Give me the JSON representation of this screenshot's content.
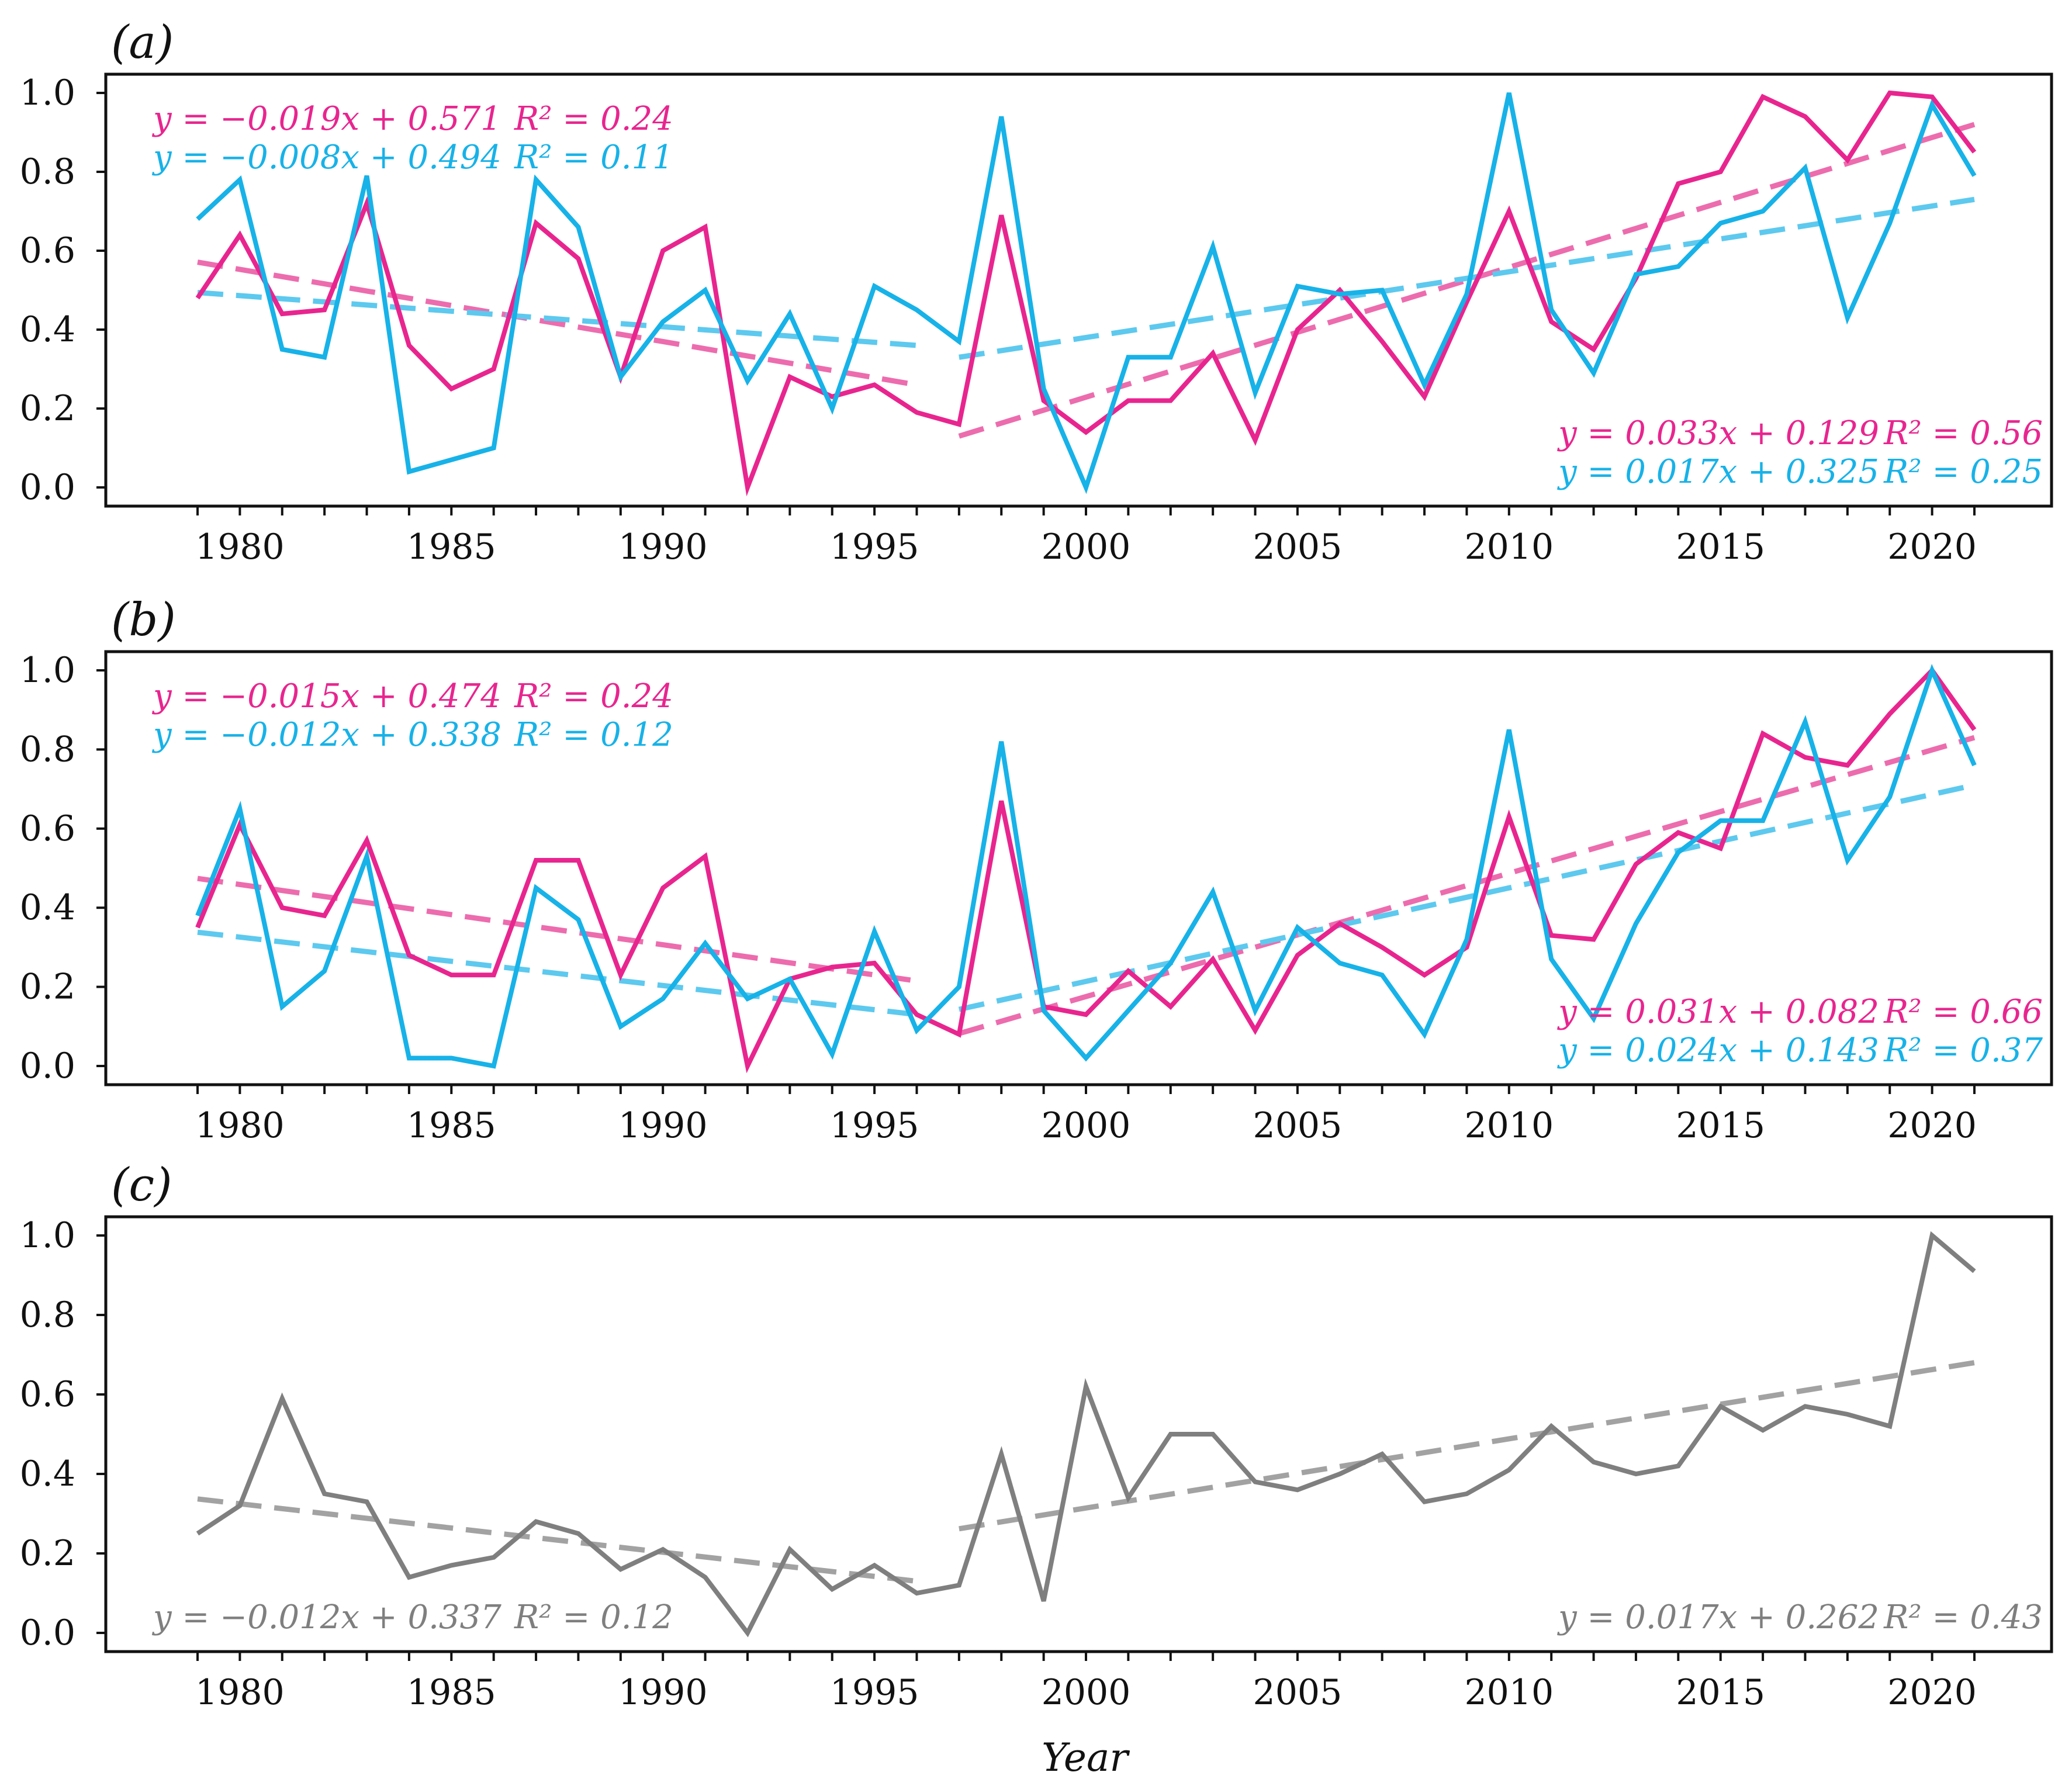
{
  "colors": {
    "magenta": "#e8258f",
    "cyan": "#17b2e8",
    "gray": "#7f7f7f",
    "magenta_trend": "#ec6cae",
    "cyan_trend": "#5dc9ee",
    "gray_trend": "#a2a2a2"
  },
  "xlabel": "Year",
  "chart_data": [
    {
      "type": "line",
      "panel_label": "(a)",
      "xlim": [
        1979,
        2021
      ],
      "ylim": [
        0.0,
        1.0
      ],
      "xticks": [
        "1980",
        "1985",
        "1990",
        "1995",
        "2000",
        "2005",
        "2010",
        "2015",
        "2020"
      ],
      "yticks": [
        "0.0",
        "0.2",
        "0.4",
        "0.6",
        "0.8",
        "1.0"
      ],
      "x": [
        1979,
        1980,
        1981,
        1982,
        1983,
        1984,
        1985,
        1986,
        1987,
        1988,
        1989,
        1990,
        1991,
        1992,
        1993,
        1994,
        1995,
        1996,
        1997,
        1998,
        1999,
        2000,
        2001,
        2002,
        2003,
        2004,
        2005,
        2006,
        2007,
        2008,
        2009,
        2010,
        2011,
        2012,
        2013,
        2014,
        2015,
        2016,
        2017,
        2018,
        2019,
        2020,
        2021
      ],
      "series": [
        {
          "name": "magenta",
          "color_key": "magenta",
          "values": [
            0.48,
            0.64,
            0.44,
            0.45,
            0.72,
            0.36,
            0.25,
            0.3,
            0.67,
            0.58,
            0.28,
            0.6,
            0.66,
            0.0,
            0.28,
            0.23,
            0.26,
            0.19,
            0.16,
            0.69,
            0.22,
            0.14,
            0.22,
            0.22,
            0.34,
            0.12,
            0.4,
            0.5,
            0.37,
            0.23,
            0.47,
            0.7,
            0.42,
            0.35,
            0.53,
            0.77,
            0.8,
            0.99,
            0.94,
            0.83,
            1.0,
            0.99,
            0.85
          ]
        },
        {
          "name": "cyan",
          "color_key": "cyan",
          "values": [
            0.68,
            0.78,
            0.35,
            0.33,
            0.79,
            0.04,
            0.07,
            0.1,
            0.78,
            0.66,
            0.28,
            0.42,
            0.5,
            0.27,
            0.44,
            0.2,
            0.51,
            0.45,
            0.37,
            0.94,
            0.25,
            0.0,
            0.33,
            0.33,
            0.61,
            0.24,
            0.51,
            0.49,
            0.5,
            0.26,
            0.49,
            1.0,
            0.45,
            0.29,
            0.54,
            0.56,
            0.67,
            0.7,
            0.81,
            0.43,
            0.67,
            0.97,
            0.79
          ]
        }
      ],
      "trends": [
        {
          "color_key": "magenta_trend",
          "x": [
            1979,
            1996
          ],
          "y": [
            0.571,
            0.26
          ]
        },
        {
          "color_key": "cyan_trend",
          "x": [
            1979,
            1996
          ],
          "y": [
            0.494,
            0.36
          ]
        },
        {
          "color_key": "magenta_trend",
          "x": [
            1997,
            2021
          ],
          "y": [
            0.13,
            0.92
          ]
        },
        {
          "color_key": "cyan_trend",
          "x": [
            1997,
            2021
          ],
          "y": [
            0.33,
            0.73
          ]
        }
      ],
      "annotations": {
        "left": [
          {
            "color_key": "magenta",
            "eq": "y = −0.019x + 0.571",
            "r2": "R² = 0.24"
          },
          {
            "color_key": "cyan",
            "eq": "y = −0.008x + 0.494",
            "r2": "R² = 0.11"
          }
        ],
        "right": [
          {
            "color_key": "magenta",
            "eq": "y = 0.033x + 0.129",
            "r2": "R² = 0.56"
          },
          {
            "color_key": "cyan",
            "eq": "y = 0.017x + 0.325",
            "r2": "R² = 0.25"
          }
        ]
      }
    },
    {
      "type": "line",
      "panel_label": "(b)",
      "xlim": [
        1979,
        2021
      ],
      "ylim": [
        0.0,
        1.0
      ],
      "xticks": [
        "1980",
        "1985",
        "1990",
        "1995",
        "2000",
        "2005",
        "2010",
        "2015",
        "2020"
      ],
      "yticks": [
        "0.0",
        "0.2",
        "0.4",
        "0.6",
        "0.8",
        "1.0"
      ],
      "x": [
        1979,
        1980,
        1981,
        1982,
        1983,
        1984,
        1985,
        1986,
        1987,
        1988,
        1989,
        1990,
        1991,
        1992,
        1993,
        1994,
        1995,
        1996,
        1997,
        1998,
        1999,
        2000,
        2001,
        2002,
        2003,
        2004,
        2005,
        2006,
        2007,
        2008,
        2009,
        2010,
        2011,
        2012,
        2013,
        2014,
        2015,
        2016,
        2017,
        2018,
        2019,
        2020,
        2021
      ],
      "series": [
        {
          "name": "magenta",
          "color_key": "magenta",
          "values": [
            0.35,
            0.61,
            0.4,
            0.38,
            0.57,
            0.28,
            0.23,
            0.23,
            0.52,
            0.52,
            0.23,
            0.45,
            0.53,
            0.0,
            0.22,
            0.25,
            0.26,
            0.13,
            0.08,
            0.67,
            0.15,
            0.13,
            0.24,
            0.15,
            0.27,
            0.09,
            0.28,
            0.36,
            0.3,
            0.23,
            0.3,
            0.63,
            0.33,
            0.32,
            0.51,
            0.59,
            0.55,
            0.84,
            0.78,
            0.76,
            0.89,
            1.0,
            0.85
          ]
        },
        {
          "name": "cyan",
          "color_key": "cyan",
          "values": [
            0.38,
            0.65,
            0.15,
            0.24,
            0.53,
            0.02,
            0.02,
            0.0,
            0.45,
            0.37,
            0.1,
            0.17,
            0.31,
            0.17,
            0.22,
            0.03,
            0.34,
            0.09,
            0.2,
            0.82,
            0.14,
            0.02,
            0.14,
            0.26,
            0.44,
            0.14,
            0.35,
            0.26,
            0.23,
            0.08,
            0.32,
            0.85,
            0.27,
            0.12,
            0.36,
            0.54,
            0.62,
            0.62,
            0.87,
            0.52,
            0.68,
            1.0,
            0.76
          ]
        }
      ],
      "trends": [
        {
          "color_key": "magenta_trend",
          "x": [
            1979,
            1996
          ],
          "y": [
            0.474,
            0.215
          ]
        },
        {
          "color_key": "cyan_trend",
          "x": [
            1979,
            1996
          ],
          "y": [
            0.338,
            0.13
          ]
        },
        {
          "color_key": "magenta_trend",
          "x": [
            1997,
            2021
          ],
          "y": [
            0.082,
            0.83
          ]
        },
        {
          "color_key": "cyan_trend",
          "x": [
            1997,
            2021
          ],
          "y": [
            0.143,
            0.71
          ]
        }
      ],
      "annotations": {
        "left": [
          {
            "color_key": "magenta",
            "eq": "y = −0.015x + 0.474",
            "r2": "R² = 0.24"
          },
          {
            "color_key": "cyan",
            "eq": "y = −0.012x + 0.338",
            "r2": "R² = 0.12"
          }
        ],
        "right": [
          {
            "color_key": "magenta",
            "eq": "y = 0.031x + 0.082",
            "r2": "R² = 0.66"
          },
          {
            "color_key": "cyan",
            "eq": "y = 0.024x + 0.143",
            "r2": "R² = 0.37"
          }
        ]
      }
    },
    {
      "type": "line",
      "panel_label": "(c)",
      "xlim": [
        1979,
        2021
      ],
      "ylim": [
        0.0,
        1.0
      ],
      "xticks": [
        "1980",
        "1985",
        "1990",
        "1995",
        "2000",
        "2005",
        "2010",
        "2015",
        "2020"
      ],
      "yticks": [
        "0.0",
        "0.2",
        "0.4",
        "0.6",
        "0.8",
        "1.0"
      ],
      "x": [
        1979,
        1980,
        1981,
        1982,
        1983,
        1984,
        1985,
        1986,
        1987,
        1988,
        1989,
        1990,
        1991,
        1992,
        1993,
        1994,
        1995,
        1996,
        1997,
        1998,
        1999,
        2000,
        2001,
        2002,
        2003,
        2004,
        2005,
        2006,
        2007,
        2008,
        2009,
        2010,
        2011,
        2012,
        2013,
        2014,
        2015,
        2016,
        2017,
        2018,
        2019,
        2020,
        2021
      ],
      "series": [
        {
          "name": "gray",
          "color_key": "gray",
          "values": [
            0.25,
            0.32,
            0.59,
            0.35,
            0.33,
            0.14,
            0.17,
            0.19,
            0.28,
            0.25,
            0.16,
            0.21,
            0.14,
            0.0,
            0.21,
            0.11,
            0.17,
            0.1,
            0.12,
            0.45,
            0.08,
            0.62,
            0.34,
            0.5,
            0.5,
            0.38,
            0.36,
            0.4,
            0.45,
            0.33,
            0.35,
            0.41,
            0.52,
            0.43,
            0.4,
            0.42,
            0.57,
            0.51,
            0.57,
            0.55,
            0.52,
            1.0,
            0.91
          ]
        }
      ],
      "trends": [
        {
          "color_key": "gray_trend",
          "x": [
            1979,
            1996
          ],
          "y": [
            0.337,
            0.13
          ]
        },
        {
          "color_key": "gray_trend",
          "x": [
            1997,
            2021
          ],
          "y": [
            0.262,
            0.68
          ]
        }
      ],
      "annotations": {
        "left": [
          {
            "color_key": "gray",
            "eq": "y = −0.012x + 0.337",
            "r2": "R² = 0.12"
          }
        ],
        "right": [
          {
            "color_key": "gray",
            "eq": "y = 0.017x + 0.262",
            "r2": "R² = 0.43"
          }
        ]
      }
    }
  ]
}
